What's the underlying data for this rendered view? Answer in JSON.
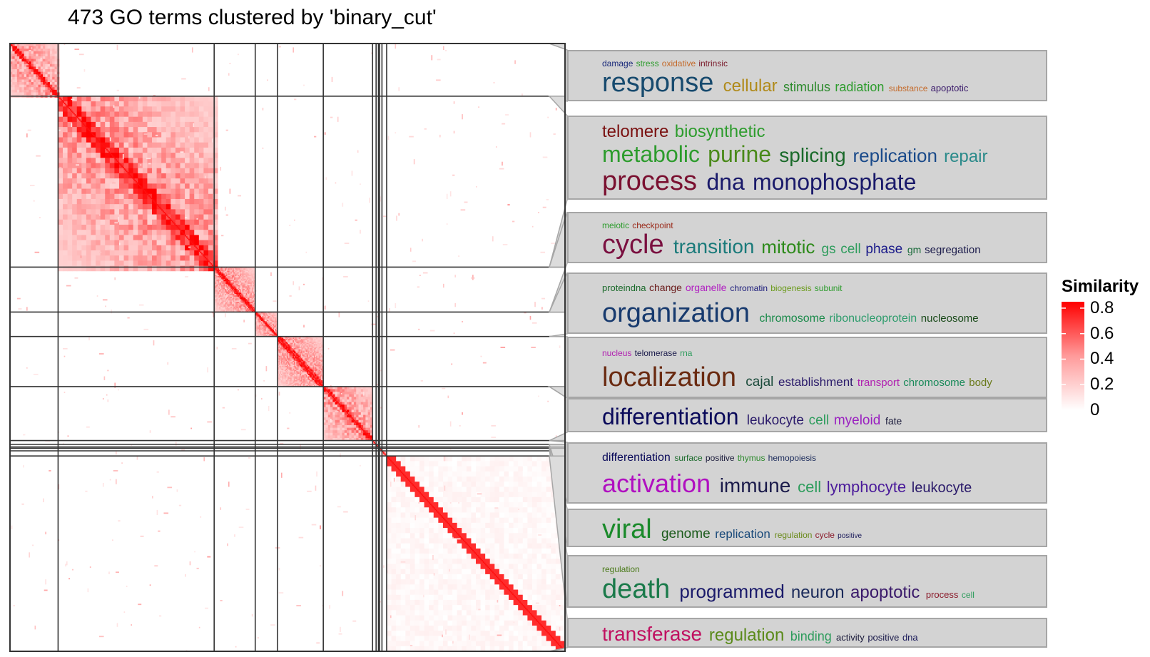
{
  "chart_data": {
    "type": "heatmap",
    "title": "473 GO terms clustered by 'binary_cut'",
    "n_terms": 473,
    "cluster_sizes": [
      41,
      133,
      35,
      19,
      39,
      42,
      3,
      2,
      1,
      2,
      4,
      152
    ],
    "legend": {
      "title": "Similarity",
      "range": [
        0,
        0.85
      ],
      "ticks": [
        0.8,
        0.6,
        0.4,
        0.2,
        0
      ],
      "colors": [
        "#ffffff",
        "#ff0000"
      ]
    }
  },
  "word_clouds": [
    {
      "lines": [
        [
          [
            "damage",
            "#1a2a7a",
            12
          ],
          [
            "stress",
            "#2d9c2d",
            12
          ],
          [
            "oxidative",
            "#c46a2a",
            12
          ],
          [
            "intrinsic",
            "#7a1a2a",
            12
          ]
        ],
        [
          [
            "response",
            "#174a6e",
            38
          ],
          [
            "cellular",
            "#b08a1a",
            24
          ],
          [
            "stimulus",
            "#2d8a2d",
            18
          ],
          [
            "radiation",
            "#2d9c2d",
            18
          ],
          [
            "substance",
            "#c46a2a",
            12
          ],
          [
            "apoptotic",
            "#3a1a6a",
            13
          ]
        ]
      ]
    },
    {
      "lines": [
        [
          [
            "telomere",
            "#7a1010",
            24
          ],
          [
            "biosynthetic",
            "#2d9c2d",
            24
          ]
        ],
        [
          [
            "metabolic",
            "#2d9c2d",
            32
          ],
          [
            "purine",
            "#4a8a1a",
            32
          ],
          [
            "splicing",
            "#1a6a2a",
            28
          ],
          [
            "replication",
            "#1a4a8a",
            26
          ],
          [
            "repair",
            "#2a8a8a",
            24
          ]
        ],
        [
          [
            "process",
            "#7a1030",
            38
          ],
          [
            "dna",
            "#1a1a6a",
            32
          ],
          [
            "monophosphate",
            "#1a1a6a",
            32
          ]
        ]
      ]
    },
    {
      "lines": [
        [
          [
            "meiotic",
            "#2d9c2d",
            12
          ],
          [
            "checkpoint",
            "#9a2a1a",
            12
          ]
        ],
        [
          [
            "cycle",
            "#7a1040",
            38
          ],
          [
            "transition",
            "#1a7a7a",
            28
          ],
          [
            "mitotic",
            "#2d8a1a",
            26
          ],
          [
            "gs",
            "#2d9c5c",
            19
          ],
          [
            "cell",
            "#2d9c5c",
            19
          ],
          [
            "phase",
            "#1a1a8a",
            19
          ],
          [
            "gm",
            "#1a6a3a",
            14
          ],
          [
            "segregation",
            "#1a1a4a",
            15
          ]
        ]
      ]
    },
    {
      "lines": [
        [
          [
            "proteindna",
            "#1a6a2a",
            13
          ],
          [
            "change",
            "#6a1a1a",
            14
          ],
          [
            "organelle",
            "#b020c0",
            14
          ],
          [
            "chromatin",
            "#1a1a7a",
            12
          ],
          [
            "biogenesis",
            "#6a9a1a",
            12
          ],
          [
            "subunit",
            "#2d9c2d",
            12
          ]
        ],
        [
          [
            "organization",
            "#173a6e",
            38
          ],
          [
            "chromosome",
            "#1a8a4a",
            16
          ],
          [
            "ribonucleoprotein",
            "#2d9c6c",
            16
          ],
          [
            "nucleosome",
            "#1a4a1a",
            15
          ]
        ]
      ]
    },
    {
      "lines": [
        [
          [
            "nucleus",
            "#b020b0",
            12
          ],
          [
            "telomerase",
            "#1a1a4a",
            12
          ],
          [
            "rna",
            "#2d9c5c",
            12
          ]
        ],
        [
          [
            "localization",
            "#6a2a10",
            38
          ],
          [
            "cajal",
            "#1a4a3a",
            19
          ],
          [
            "establishment",
            "#2a1a6a",
            17
          ],
          [
            "transport",
            "#b020b0",
            15
          ],
          [
            "chromosome",
            "#1a8a5a",
            15
          ],
          [
            "body",
            "#6a7a1a",
            15
          ]
        ]
      ]
    },
    {
      "lines": [
        [
          [
            "differentiation",
            "#0a0a5a",
            32
          ],
          [
            "leukocyte",
            "#2a1a6a",
            19
          ],
          [
            "cell",
            "#2d9c5c",
            19
          ],
          [
            "myeloid",
            "#9a20c0",
            19
          ],
          [
            "fate",
            "#1a1a3a",
            14
          ]
        ]
      ]
    },
    {
      "lines": [
        [
          [
            "differentiation",
            "#0a0a5a",
            16
          ],
          [
            "surface",
            "#1a6a2a",
            12
          ],
          [
            "positive",
            "#1a1a3a",
            12
          ],
          [
            "thymus",
            "#2d8a2d",
            12
          ],
          [
            "hemopoiesis",
            "#1a2a5a",
            12
          ]
        ],
        [
          [
            "activation",
            "#b010c0",
            36
          ],
          [
            "immune",
            "#1a1a4a",
            28
          ],
          [
            "cell",
            "#2d9c5c",
            22
          ],
          [
            "lymphocyte",
            "#4a1a9a",
            22
          ],
          [
            "leukocyte",
            "#2a1a6a",
            20
          ]
        ]
      ]
    },
    {
      "lines": [
        [
          [
            "viral",
            "#1a8a2a",
            38
          ],
          [
            "genome",
            "#1a5a1a",
            19
          ],
          [
            "replication",
            "#1a4a7a",
            17
          ],
          [
            "regulation",
            "#6a8a1a",
            12
          ],
          [
            "cycle",
            "#8a1a2a",
            12
          ],
          [
            "positive",
            "#1a1a5a",
            10
          ]
        ]
      ]
    },
    {
      "lines": [
        [
          [
            "regulation",
            "#4a7a1a",
            12
          ]
        ],
        [
          [
            "death",
            "#1a7a4a",
            38
          ],
          [
            "programmed",
            "#1a1a6a",
            26
          ],
          [
            "neuron",
            "#1a2a5a",
            24
          ],
          [
            "apoptotic",
            "#3a1a6a",
            24
          ],
          [
            "process",
            "#8a1a2a",
            13
          ],
          [
            "cell",
            "#2d9c5c",
            12
          ]
        ]
      ]
    },
    {
      "lines": [
        [
          [
            "transferase",
            "#c01060",
            28
          ],
          [
            "regulation",
            "#5a8a1a",
            24
          ],
          [
            "binding",
            "#2d9c5c",
            18
          ],
          [
            "activity",
            "#1a1a3a",
            13
          ],
          [
            "positive",
            "#1a1a4a",
            13
          ],
          [
            "dna",
            "#1a1a5a",
            13
          ]
        ]
      ]
    }
  ]
}
